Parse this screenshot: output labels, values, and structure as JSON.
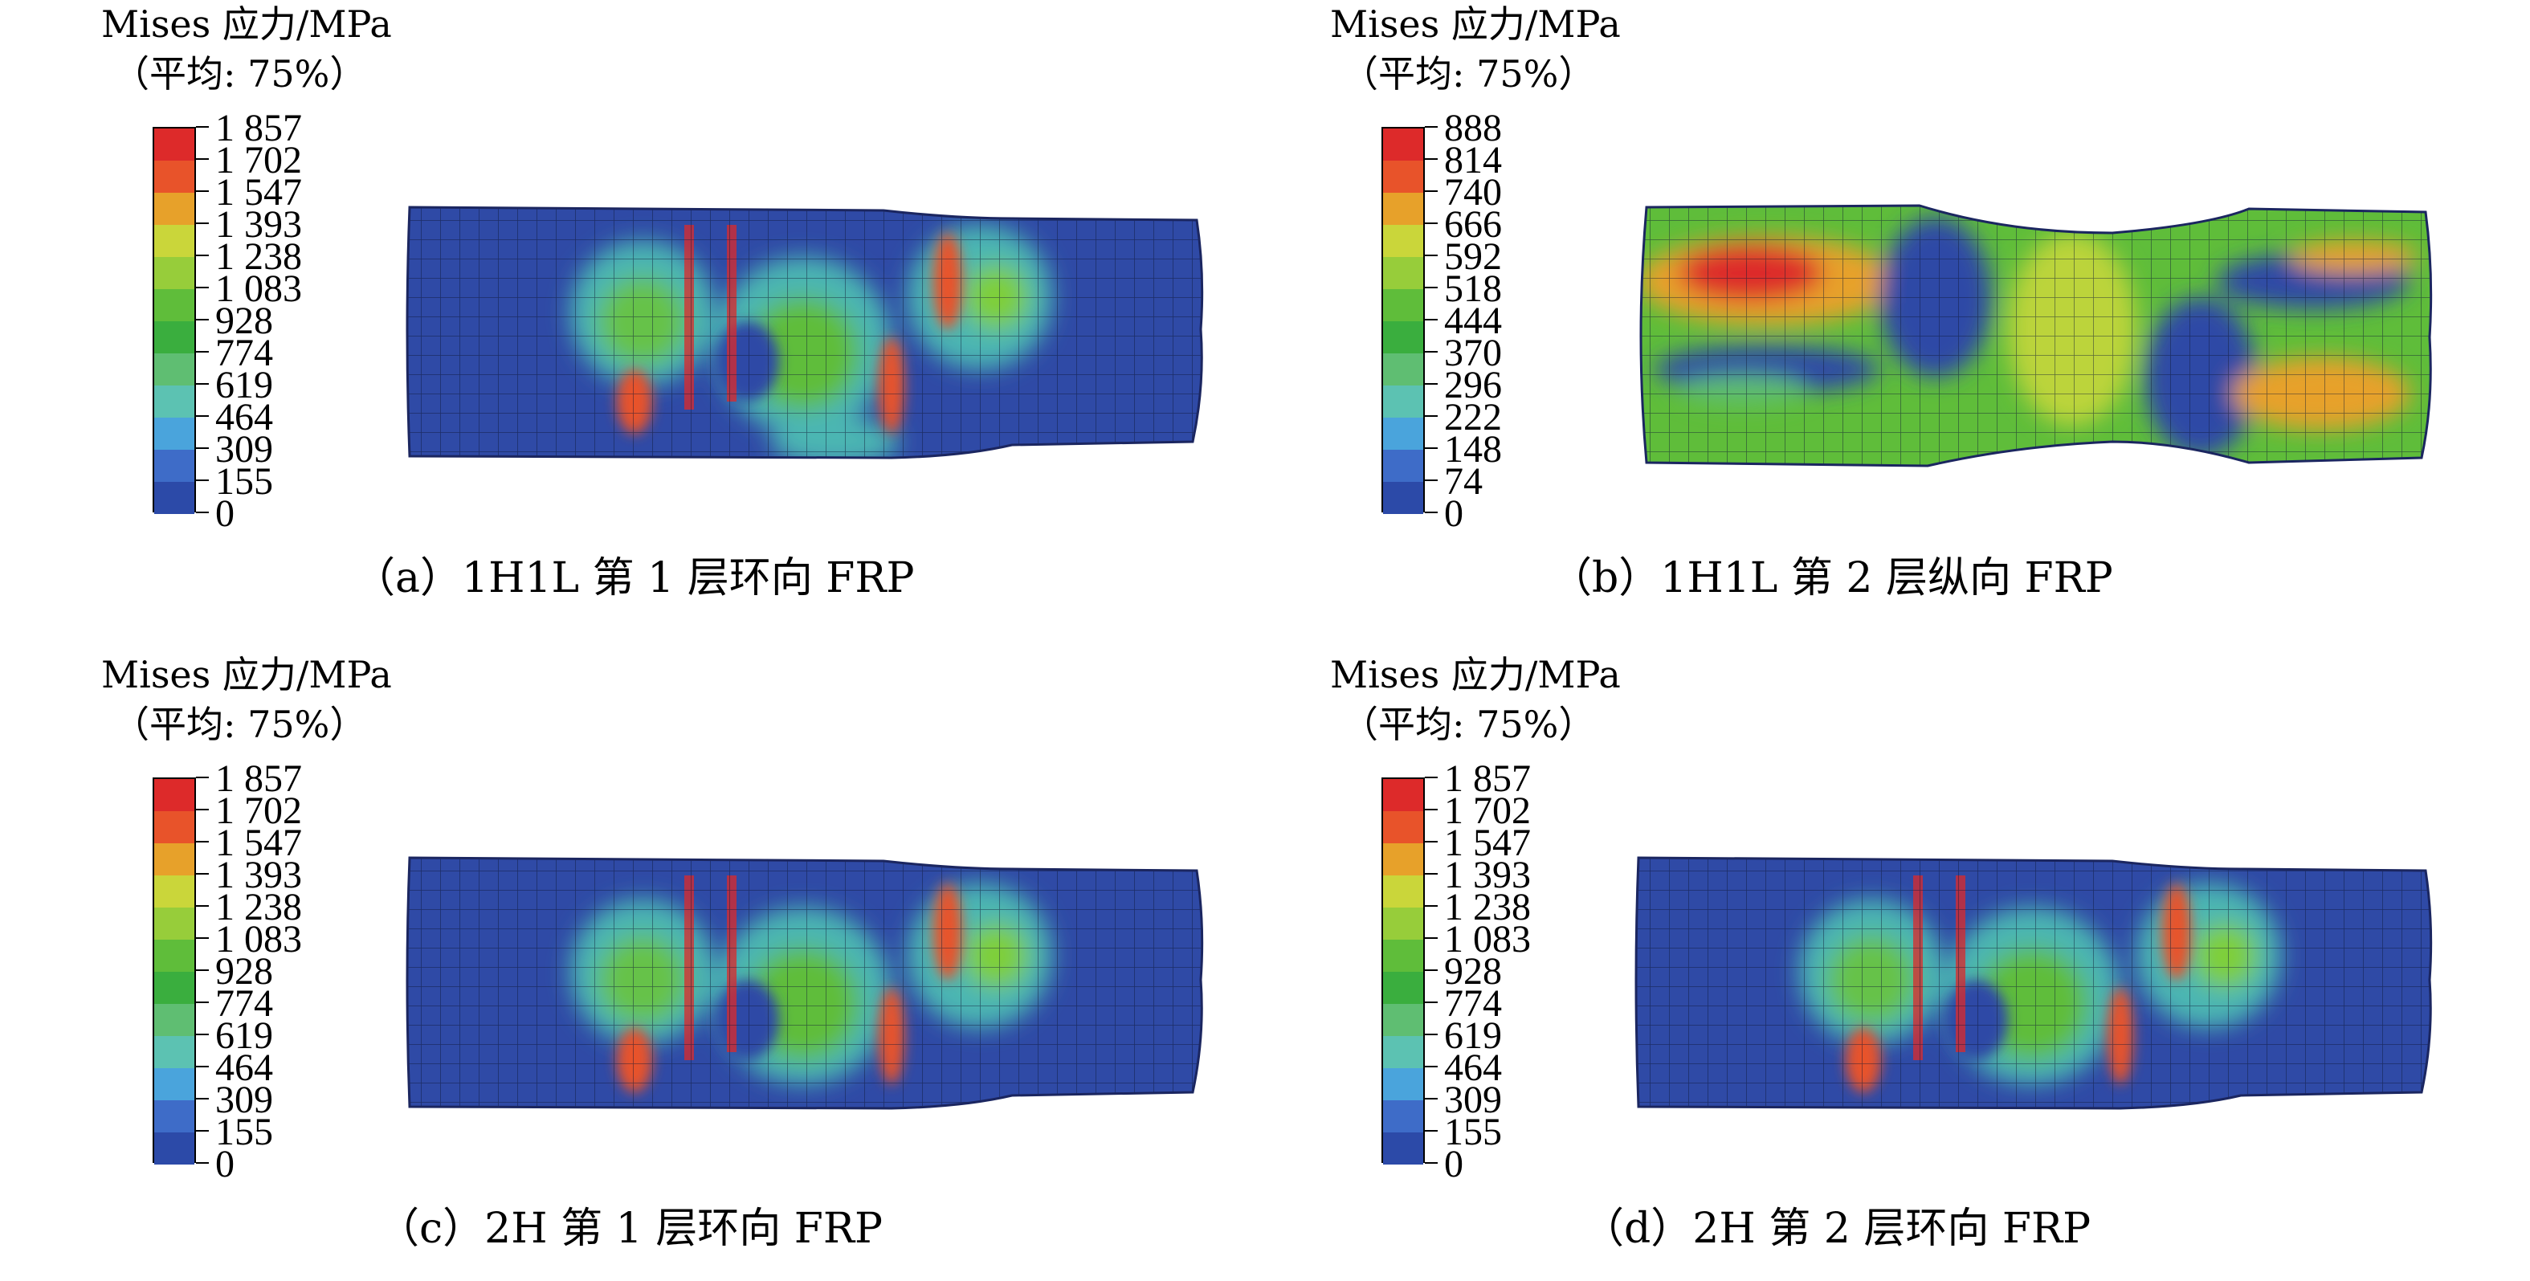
{
  "legend": {
    "title": "Mises 应力/MPa",
    "subtitle": "（平均: 75%）",
    "colors": [
      "#dd2a2a",
      "#e8532a",
      "#e7a12a",
      "#cad63a",
      "#97cd3a",
      "#5fbd3a",
      "#3aae3e",
      "#5fbe72",
      "#5cc2b2",
      "#4aa4dc",
      "#3e6cc8",
      "#2c4aa8"
    ]
  },
  "panels": [
    {
      "caption": "（a）1H1L 第 1 层环向 FRP",
      "ticks": [
        "1 857",
        "1 702",
        "1 547",
        "1 393",
        "1 238",
        "1 083",
        "928",
        "774",
        "619",
        "464",
        "309",
        "155",
        "0"
      ]
    },
    {
      "caption": "（b）1H1L 第 2 层纵向 FRP",
      "ticks": [
        "888",
        "814",
        "740",
        "666",
        "592",
        "518",
        "444",
        "370",
        "296",
        "222",
        "148",
        "74",
        "0"
      ]
    },
    {
      "caption": "（c）2H 第 1 层环向 FRP",
      "ticks": [
        "1 857",
        "1 702",
        "1 547",
        "1 393",
        "1 238",
        "1 083",
        "928",
        "774",
        "619",
        "464",
        "309",
        "155",
        "0"
      ]
    },
    {
      "caption": "（d）2H 第 2 层环向 FRP",
      "ticks": [
        "1 857",
        "1 702",
        "1 547",
        "1 393",
        "1 238",
        "1 083",
        "928",
        "774",
        "619",
        "464",
        "309",
        "155",
        "0"
      ]
    }
  ]
}
